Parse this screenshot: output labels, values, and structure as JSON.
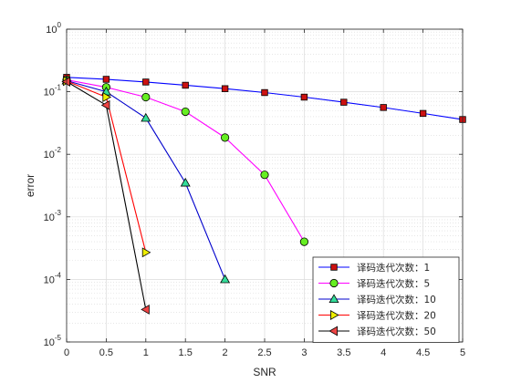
{
  "chart_data": {
    "type": "line",
    "title": "",
    "xlabel": "SNR",
    "ylabel": "error",
    "xlim": [
      0,
      5
    ],
    "ylim": [
      1e-05,
      1
    ],
    "yscale": "log",
    "grid": true,
    "minor_grid": true,
    "legend_position": "bottom-right",
    "x_ticks": [
      "0",
      "0.5",
      "1",
      "1.5",
      "2",
      "2.5",
      "3",
      "3.5",
      "4",
      "4.5",
      "5"
    ],
    "y_ticks": [
      {
        "base": "10",
        "exp": "0"
      },
      {
        "base": "10",
        "exp": "-1"
      },
      {
        "base": "10",
        "exp": "-2"
      },
      {
        "base": "10",
        "exp": "-3"
      },
      {
        "base": "10",
        "exp": "-4"
      },
      {
        "base": "10",
        "exp": "-5"
      }
    ],
    "series": [
      {
        "name": "译码迭代次数：1",
        "line_color": "#0000ff",
        "marker": "square",
        "marker_fill": "#cc1111",
        "x": [
          0,
          0.5,
          1,
          1.5,
          2,
          2.5,
          3,
          3.5,
          4,
          4.5,
          5
        ],
        "y": [
          0.17,
          0.158,
          0.143,
          0.127,
          0.112,
          0.097,
          0.082,
          0.068,
          0.056,
          0.045,
          0.036
        ]
      },
      {
        "name": "译码迭代次数：5",
        "line_color": "#ff00ff",
        "marker": "circle",
        "marker_fill": "#66ee22",
        "x": [
          0,
          0.5,
          1,
          1.5,
          2,
          2.5,
          3
        ],
        "y": [
          0.155,
          0.118,
          0.082,
          0.048,
          0.0185,
          0.0047,
          0.0004
        ]
      },
      {
        "name": "译码迭代次数：10",
        "line_color": "#0000cc",
        "marker": "triangle-up",
        "marker_fill": "#33dd99",
        "x": [
          0,
          0.5,
          1,
          1.5,
          2
        ],
        "y": [
          0.15,
          0.1,
          0.038,
          0.0035,
          0.0001
        ]
      },
      {
        "name": "译码迭代次数：20",
        "line_color": "#ff0000",
        "marker": "triangle-right",
        "marker_fill": "#eeee00",
        "x": [
          0,
          0.5,
          1
        ],
        "y": [
          0.148,
          0.082,
          0.00027
        ]
      },
      {
        "name": "译码迭代次数：50",
        "line_color": "#000000",
        "marker": "triangle-left",
        "marker_fill": "#ee4444",
        "x": [
          0,
          0.5,
          1
        ],
        "y": [
          0.145,
          0.061,
          3.3e-05
        ]
      }
    ]
  }
}
